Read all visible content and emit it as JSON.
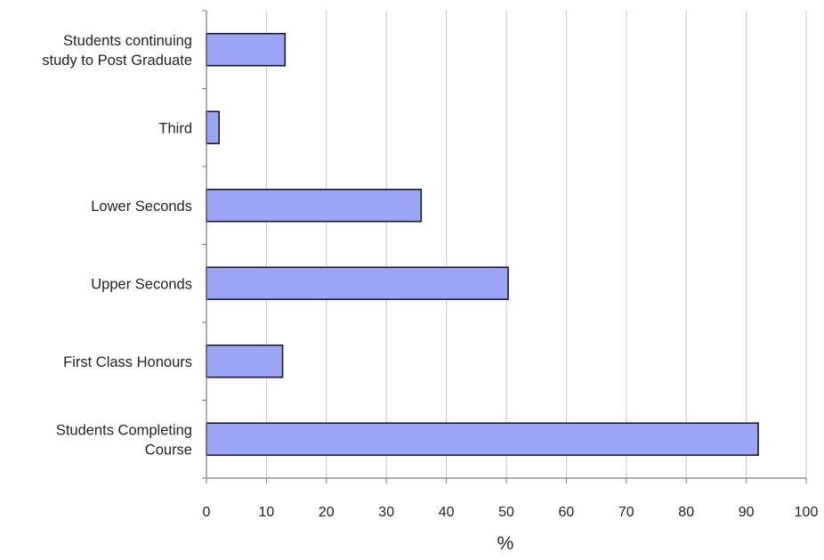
{
  "chart_data": {
    "type": "bar",
    "orientation": "horizontal",
    "categories": [
      "Students Completing Course",
      "First Class Honours",
      "Upper Seconds",
      "Lower Seconds",
      "Third",
      "Students continuing study to Post Graduate"
    ],
    "category_lines": [
      [
        "Students Completing",
        "Course"
      ],
      [
        "First Class Honours"
      ],
      [
        "Upper Seconds"
      ],
      [
        "Lower Seconds"
      ],
      [
        "Third"
      ],
      [
        "Students continuing",
        "study to Post Graduate"
      ]
    ],
    "values": [
      92,
      12.7,
      50.3,
      35.8,
      2.1,
      13.1
    ],
    "xlabel": "%",
    "xlim": [
      0,
      100
    ],
    "xticks": [
      0,
      10,
      20,
      30,
      40,
      50,
      60,
      70,
      80,
      90,
      100
    ],
    "grid": true,
    "legend": "none",
    "colors": {
      "bar_fill": "#9aa6f3",
      "bar_stroke": "#1a1a2e",
      "grid": "#c8c8c8",
      "axis": "#7a7a7a"
    }
  }
}
